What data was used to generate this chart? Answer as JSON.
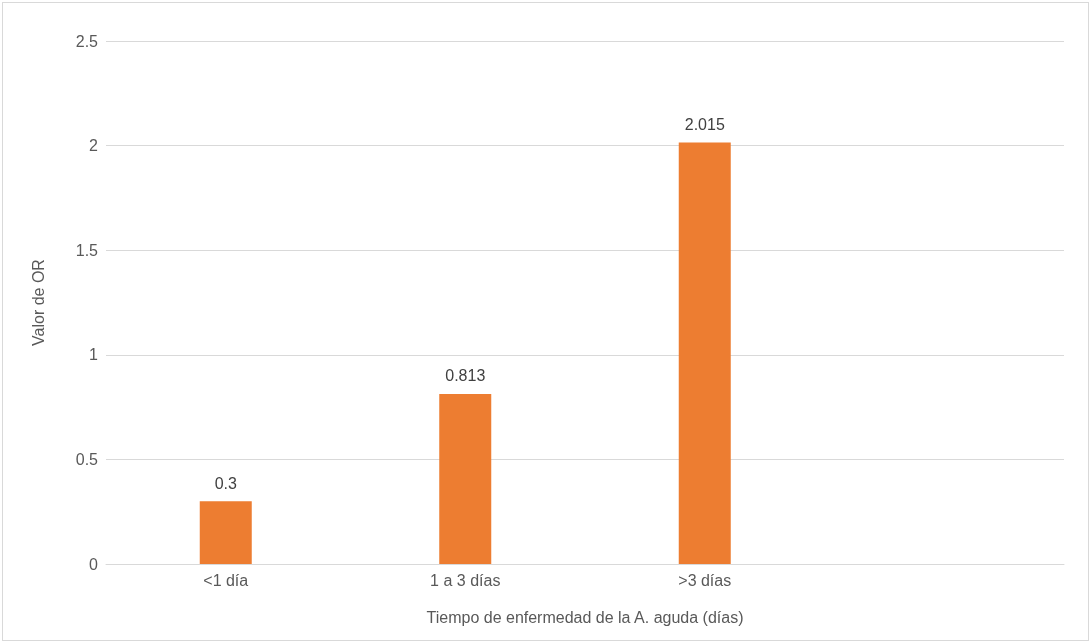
{
  "chart_data": {
    "type": "bar",
    "xlabel": "Tiempo de enfermedad de la A. aguda (días)",
    "ylabel": "Valor de OR",
    "categories": [
      "<1 día",
      "1 a 3 días",
      ">3 días",
      null
    ],
    "values": [
      0.3,
      0.813,
      2.015,
      null
    ],
    "color": "#ed7d31",
    "ylim": [
      0,
      2.5
    ],
    "yticks": [
      0,
      0.5,
      1,
      1.5,
      2,
      2.5
    ],
    "grid": "y",
    "data_labels": true
  }
}
